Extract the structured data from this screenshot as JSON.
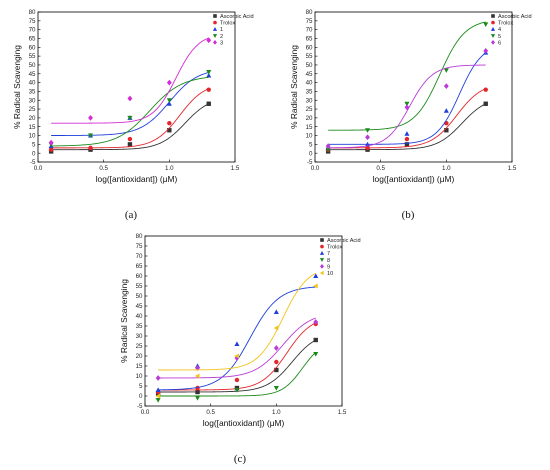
{
  "colors": {
    "Ascorbic Acid": "#333333",
    "Trolox": "#e4252a",
    "1": "#1f3fdc",
    "2": "#1a8a1a",
    "3": "#d42bd4",
    "4": "#1f3fdc",
    "5": "#1a8a1a",
    "6": "#b93ad6",
    "7": "#1f3fdc",
    "8": "#1a8a1a",
    "9": "#b93ad6",
    "10": "#f2c319"
  },
  "chart_data": [
    {
      "type": "scatter",
      "panel_label": "(a)",
      "title": "",
      "xlabel": "log([antioxidant]) (μM)",
      "ylabel": "% Radical Scavenging",
      "xlim": [
        0,
        1.5
      ],
      "ylim": [
        -5,
        80
      ],
      "xticks": [
        0,
        0.5,
        1,
        1.5
      ],
      "xtick_labels": [
        "0.0",
        "0.5",
        "1.0",
        "1.5"
      ],
      "yticks": [
        -5,
        0,
        5,
        10,
        15,
        20,
        25,
        30,
        35,
        40,
        45,
        50,
        55,
        60,
        65,
        70,
        75,
        80
      ],
      "legend_position": "top-right",
      "series": [
        {
          "name": "Ascorbic Acid",
          "marker": "square",
          "x": [
            0.1,
            0.4,
            0.7,
            1.0,
            1.3
          ],
          "y": [
            1,
            2,
            5,
            13,
            28
          ],
          "fit": {
            "bottom": 2,
            "top": 32,
            "logEC50": 1.12,
            "slope": 4.5
          }
        },
        {
          "name": "Trolox",
          "marker": "circle",
          "x": [
            0.1,
            0.4,
            0.7,
            1.0,
            1.3
          ],
          "y": [
            2,
            3,
            8,
            17,
            36
          ],
          "fit": {
            "bottom": 3,
            "top": 40,
            "logEC50": 1.08,
            "slope": 4.5
          }
        },
        {
          "name": "1",
          "marker": "triangle-up",
          "x": [
            0.1,
            0.4,
            0.7,
            1.0,
            1.3
          ],
          "y": [
            4,
            10,
            20,
            28,
            44
          ],
          "fit": {
            "bottom": 10,
            "top": 48,
            "logEC50": 1.0,
            "slope": 4.0
          }
        },
        {
          "name": "2",
          "marker": "triangle-down",
          "x": [
            0.1,
            0.4,
            0.7,
            1.0,
            1.3
          ],
          "y": [
            5,
            10,
            20,
            30,
            46
          ],
          "fit": {
            "bottom": 4,
            "top": 44,
            "logEC50": 0.85,
            "slope": 3.5
          }
        },
        {
          "name": "3",
          "marker": "diamond",
          "x": [
            0.1,
            0.4,
            0.7,
            1.0,
            1.3
          ],
          "y": [
            6,
            20,
            31,
            40,
            64
          ],
          "fit": {
            "bottom": 17,
            "top": 68,
            "logEC50": 1.05,
            "slope": 5.0
          }
        }
      ]
    },
    {
      "type": "scatter",
      "panel_label": "(b)",
      "title": "",
      "xlabel": "log([antioxidant]) (μM)",
      "ylabel": "% Radical Scavenging",
      "xlim": [
        0,
        1.5
      ],
      "ylim": [
        -5,
        80
      ],
      "xticks": [
        0,
        0.5,
        1,
        1.5
      ],
      "xtick_labels": [
        "0.0",
        "0.5",
        "1.0",
        "1.5"
      ],
      "yticks": [
        -5,
        0,
        5,
        10,
        15,
        20,
        25,
        30,
        35,
        40,
        45,
        50,
        55,
        60,
        65,
        70,
        75,
        80
      ],
      "legend_position": "top-right",
      "series": [
        {
          "name": "Ascorbic Acid",
          "marker": "square",
          "x": [
            0.1,
            0.4,
            0.7,
            1.0,
            1.3
          ],
          "y": [
            1,
            2,
            5,
            13,
            28
          ],
          "fit": {
            "bottom": 2,
            "top": 32,
            "logEC50": 1.12,
            "slope": 4.5
          }
        },
        {
          "name": "Trolox",
          "marker": "circle",
          "x": [
            0.1,
            0.4,
            0.7,
            1.0,
            1.3
          ],
          "y": [
            2,
            3,
            8,
            17,
            36
          ],
          "fit": {
            "bottom": 3,
            "top": 40,
            "logEC50": 1.08,
            "slope": 4.5
          }
        },
        {
          "name": "4",
          "marker": "triangle-up",
          "x": [
            0.1,
            0.4,
            0.7,
            1.0,
            1.3
          ],
          "y": [
            3,
            5,
            11,
            24,
            57
          ],
          "fit": {
            "bottom": 5,
            "top": 62,
            "logEC50": 1.1,
            "slope": 5.0
          }
        },
        {
          "name": "5",
          "marker": "triangle-down",
          "x": [
            0.1,
            0.4,
            0.7,
            1.0,
            1.3
          ],
          "y": [
            2,
            13,
            28,
            47,
            73
          ],
          "fit": {
            "bottom": 13,
            "top": 76,
            "logEC50": 0.95,
            "slope": 4.5
          }
        },
        {
          "name": "6",
          "marker": "diamond",
          "x": [
            0.1,
            0.4,
            0.7,
            1.0,
            1.3
          ],
          "y": [
            4,
            9,
            26,
            38,
            58
          ],
          "fit": {
            "bottom": 3,
            "top": 50,
            "logEC50": 0.72,
            "slope": 5.0
          }
        }
      ]
    },
    {
      "type": "scatter",
      "panel_label": "(c)",
      "title": "",
      "xlabel": "log([antioxidant]) (μM)",
      "ylabel": "% Radical Scavenging",
      "xlim": [
        0,
        1.5
      ],
      "ylim": [
        -5,
        80
      ],
      "xticks": [
        0,
        0.5,
        1,
        1.5
      ],
      "xtick_labels": [
        "0.0",
        "0.5",
        "1.0",
        "1.5"
      ],
      "yticks": [
        -5,
        0,
        5,
        10,
        15,
        20,
        25,
        30,
        35,
        40,
        45,
        50,
        55,
        60,
        65,
        70,
        75,
        80
      ],
      "legend_position": "top-right",
      "series": [
        {
          "name": "Ascorbic Acid",
          "marker": "square",
          "x": [
            0.1,
            0.4,
            0.7,
            1.0,
            1.3
          ],
          "y": [
            1,
            2,
            4,
            13,
            28
          ],
          "fit": {
            "bottom": 2,
            "top": 32,
            "logEC50": 1.12,
            "slope": 4.5
          }
        },
        {
          "name": "Trolox",
          "marker": "circle",
          "x": [
            0.1,
            0.4,
            0.7,
            1.0,
            1.3
          ],
          "y": [
            2,
            4,
            8,
            17,
            36
          ],
          "fit": {
            "bottom": 3,
            "top": 40,
            "logEC50": 1.08,
            "slope": 4.5
          }
        },
        {
          "name": "7",
          "marker": "triangle-up",
          "x": [
            0.1,
            0.4,
            0.7,
            1.0,
            1.3
          ],
          "y": [
            3,
            15,
            26,
            42,
            60
          ],
          "fit": {
            "bottom": 3,
            "top": 55,
            "logEC50": 0.8,
            "slope": 4.0
          }
        },
        {
          "name": "8",
          "marker": "triangle-down",
          "x": [
            0.1,
            0.4,
            0.7,
            1.0,
            1.3
          ],
          "y": [
            -2,
            -1,
            3,
            4,
            21
          ],
          "fit": {
            "bottom": 0,
            "top": 28,
            "logEC50": 1.2,
            "slope": 5.5
          }
        },
        {
          "name": "9",
          "marker": "diamond",
          "x": [
            0.1,
            0.4,
            0.7,
            1.0,
            1.3
          ],
          "y": [
            9,
            14,
            19,
            24,
            37
          ],
          "fit": {
            "bottom": 9,
            "top": 42,
            "logEC50": 1.05,
            "slope": 4.0
          }
        },
        {
          "name": "10",
          "marker": "triangle-left",
          "x": [
            0.1,
            0.4,
            0.7,
            1.0,
            1.3
          ],
          "y": [
            0,
            10,
            20,
            34,
            55
          ],
          "fit": {
            "bottom": 13,
            "top": 65,
            "logEC50": 1.05,
            "slope": 4.5
          }
        }
      ]
    }
  ]
}
